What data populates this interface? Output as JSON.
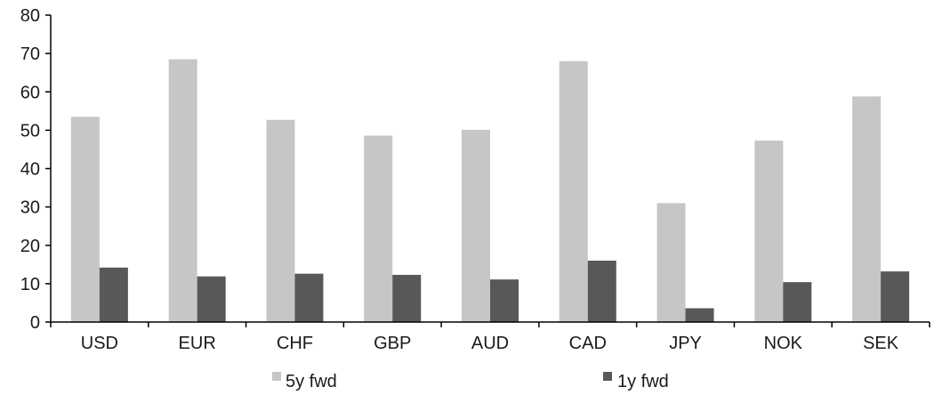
{
  "chart_data": {
    "type": "bar",
    "categories": [
      "USD",
      "EUR",
      "CHF",
      "GBP",
      "AUD",
      "CAD",
      "JPY",
      "NOK",
      "SEK"
    ],
    "series": [
      {
        "name": "5y fwd",
        "color": "#c6c6c7",
        "values": [
          53.5,
          68.5,
          52.7,
          48.6,
          50.1,
          68.0,
          31.0,
          47.3,
          58.8
        ]
      },
      {
        "name": "1y fwd",
        "color": "#585859",
        "values": [
          14.2,
          11.9,
          12.6,
          12.3,
          11.1,
          16.0,
          3.6,
          10.4,
          13.2
        ]
      }
    ],
    "title": "",
    "xlabel": "",
    "ylabel": "",
    "ylim": [
      0,
      80
    ],
    "yticks": [
      0,
      10,
      20,
      30,
      40,
      50,
      60,
      70,
      80
    ],
    "grid": false,
    "legend": "bottom"
  }
}
